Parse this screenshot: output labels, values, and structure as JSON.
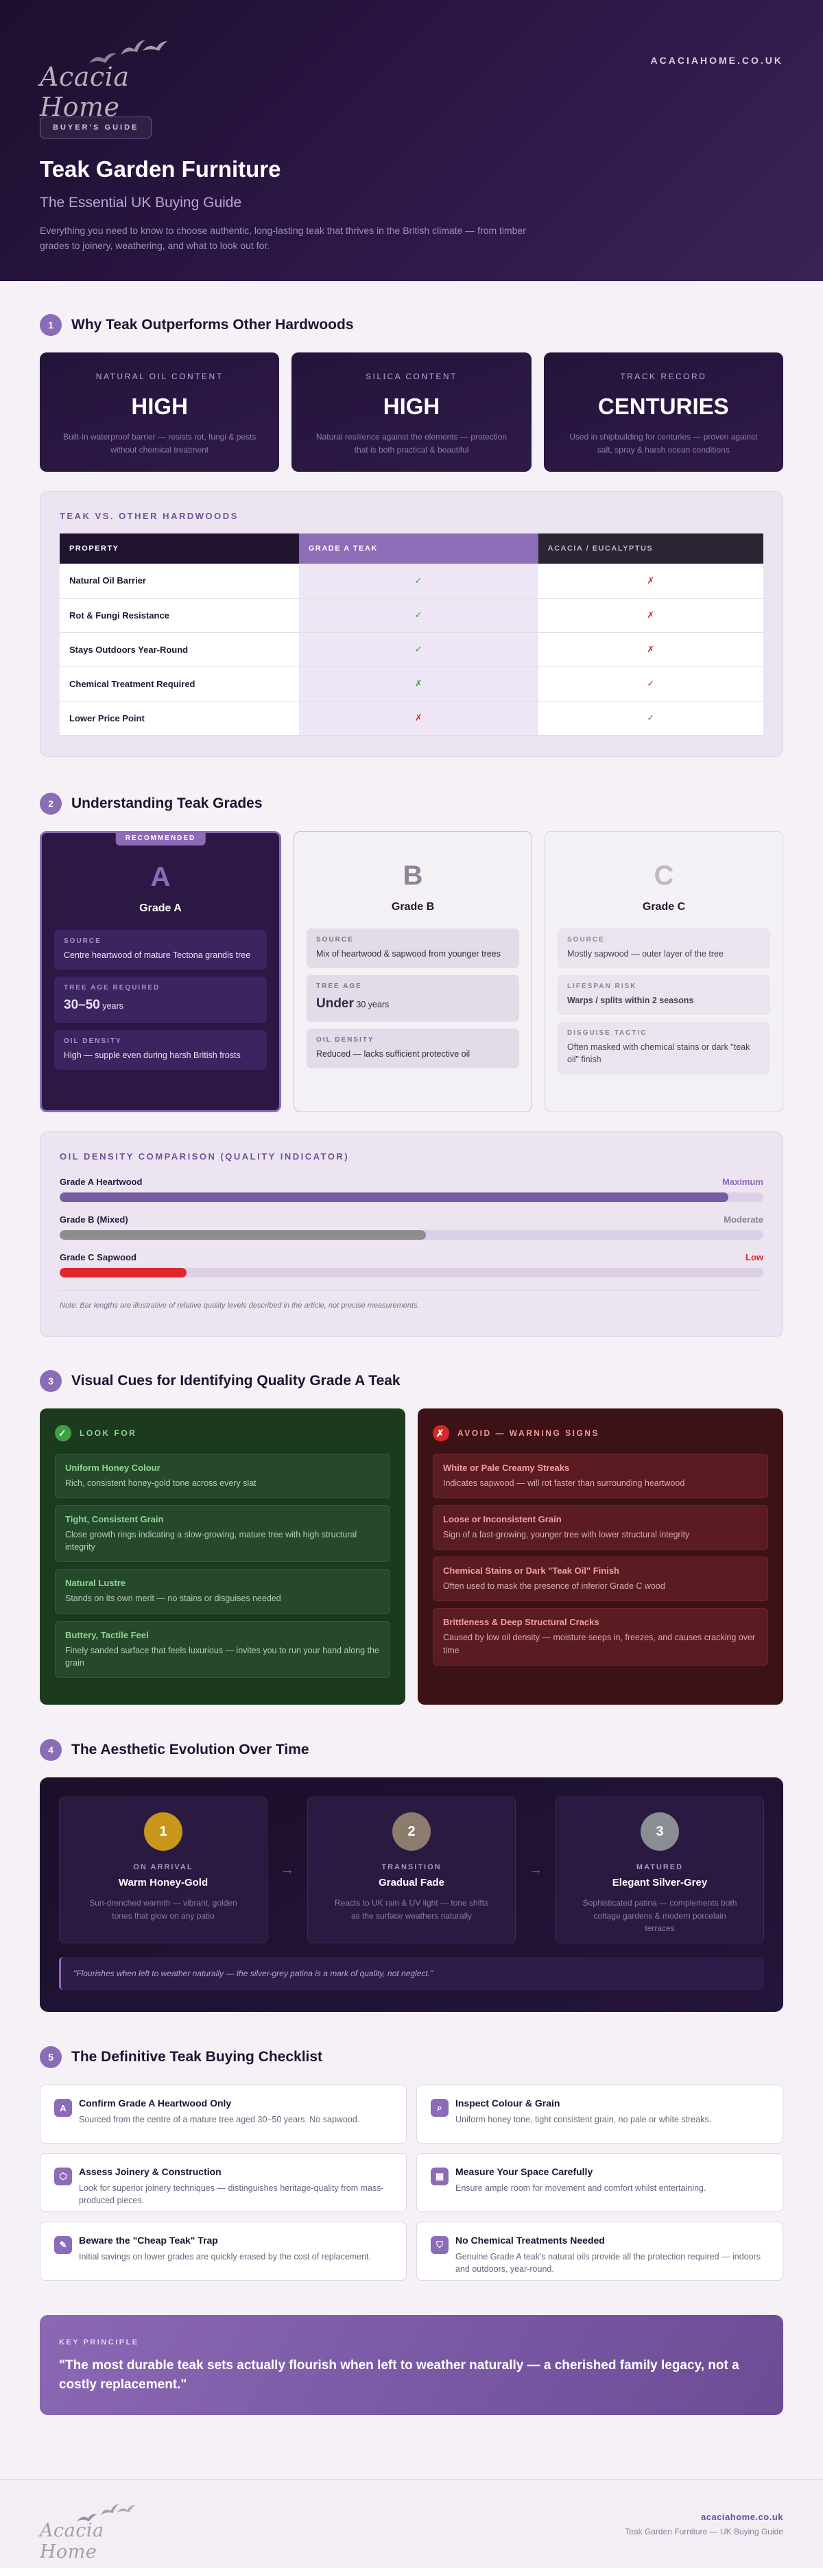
{
  "brand": {
    "logo": "Acacia Home",
    "url": "ACACIAHOME.CO.UK"
  },
  "hero": {
    "badge": "BUYER'S GUIDE",
    "title": "Teak Garden Furniture",
    "subtitle": "The Essential UK Buying Guide",
    "lede": "Everything you need to know to choose authentic, long-lasting teak that thrives in the British climate — from timber grades to joinery, weathering, and what to look out for."
  },
  "sec1": {
    "num": "1",
    "title": "Why Teak Outperforms Other Hardwoods",
    "stats": [
      {
        "label": "NATURAL OIL CONTENT",
        "value": "HIGH",
        "desc": "Built-in waterproof barrier — resists rot, fungi & pests without chemical treatment"
      },
      {
        "label": "SILICA CONTENT",
        "value": "HIGH",
        "desc": "Natural resilience against the elements — protection that is both practical & beautiful"
      },
      {
        "label": "TRACK RECORD",
        "value": "CENTURIES",
        "desc": "Used in shipbuilding for centuries — proven against salt, spray & harsh ocean conditions"
      }
    ],
    "compare": {
      "title": "TEAK VS. OTHER HARDWOODS",
      "headers": [
        "PROPERTY",
        "GRADE A TEAK",
        "ACACIA / EUCALYPTUS"
      ],
      "rows": [
        {
          "property": "Natural Oil Barrier",
          "teak": "✓",
          "teak_ok": true,
          "other": "✗",
          "other_ok": false
        },
        {
          "property": "Rot & Fungi Resistance",
          "teak": "✓",
          "teak_ok": true,
          "other": "✗",
          "other_ok": false
        },
        {
          "property": "Stays Outdoors Year-Round",
          "teak": "✓",
          "teak_ok": true,
          "other": "✗",
          "other_ok": false
        },
        {
          "property": "Chemical Treatment Required",
          "teak": "✗",
          "teak_ok": true,
          "other": "✓",
          "other_ok": false
        },
        {
          "property": "Lower Price Point",
          "teak": "✗",
          "teak_ok": false,
          "other": "✓",
          "other_ok": true
        }
      ]
    }
  },
  "sec2": {
    "num": "2",
    "title": "Understanding Teak Grades",
    "recommended": "RECOMMENDED",
    "grades": {
      "a": {
        "letter": "A",
        "name": "Grade A",
        "f1k": "SOURCE",
        "f1v": "Centre heartwood of mature Tectona grandis tree",
        "f2k": "TREE AGE REQUIRED",
        "f2big": "30–50",
        "f2unit": " years",
        "f3k": "OIL DENSITY",
        "f3v": "High — supple even during harsh British frosts"
      },
      "b": {
        "letter": "B",
        "name": "Grade B",
        "f1k": "SOURCE",
        "f1v": "Mix of heartwood & sapwood from younger trees",
        "f2k": "TREE AGE",
        "f2big": "Under",
        "f2unit": " 30 years",
        "f3k": "OIL DENSITY",
        "f3v": "Reduced — lacks sufficient protective oil"
      },
      "c": {
        "letter": "C",
        "name": "Grade C",
        "f1k": "SOURCE",
        "f1v": "Mostly sapwood — outer layer of the tree",
        "f2k": "LIFESPAN RISK",
        "f2v": "Warps / splits within 2 seasons",
        "f3k": "DISGUISE TACTIC",
        "f3v": "Often masked with chemical stains or dark \"teak oil\" finish"
      }
    },
    "density": {
      "title": "OIL DENSITY COMPARISON (QUALITY INDICATOR)",
      "bars": [
        {
          "name": "Grade A Heartwood",
          "level": "Maximum",
          "value": 0.95,
          "color": "#7a5ca6",
          "label_color": "#8c6bb7"
        },
        {
          "name": "Grade B (Mixed)",
          "level": "Moderate",
          "value": 0.52,
          "color": "#8d8d8d",
          "label_color": "#8a8291"
        },
        {
          "name": "Grade C Sapwood",
          "level": "Low",
          "value": 0.18,
          "color": "#e0262b",
          "label_color": "#d62828"
        }
      ],
      "note": "Note: Bar lengths are illustrative of relative quality levels described in the article, not precise measurements."
    }
  },
  "sec3": {
    "num": "3",
    "title": "Visual Cues for Identifying Quality Grade A Teak",
    "look": {
      "heading": "LOOK FOR",
      "items": [
        {
          "t": "Uniform Honey Colour",
          "d": "Rich, consistent honey-gold tone across every slat"
        },
        {
          "t": "Tight, Consistent Grain",
          "d": "Close growth rings indicating a slow-growing, mature tree with high structural integrity"
        },
        {
          "t": "Natural Lustre",
          "d": "Stands on its own merit — no stains or disguises needed"
        },
        {
          "t": "Buttery, Tactile Feel",
          "d": "Finely sanded surface that feels luxurious — invites you to run your hand along the grain"
        }
      ]
    },
    "avoid": {
      "heading": "AVOID — WARNING SIGNS",
      "items": [
        {
          "t": "White or Pale Creamy Streaks",
          "d": "Indicates sapwood — will rot faster than surrounding heartwood"
        },
        {
          "t": "Loose or Inconsistent Grain",
          "d": "Sign of a fast-growing, younger tree with lower structural integrity"
        },
        {
          "t": "Chemical Stains or Dark \"Teak Oil\" Finish",
          "d": "Often used to mask the presence of inferior Grade C wood"
        },
        {
          "t": "Brittleness & Deep Structural Cracks",
          "d": "Caused by low oil density — moisture seeps in, freezes, and causes cracking over time"
        }
      ]
    }
  },
  "sec4": {
    "num": "4",
    "title": "The Aesthetic Evolution Over Time",
    "stages": [
      {
        "n": "1",
        "label": "ON ARRIVAL",
        "title": "Warm Honey-Gold",
        "desc": "Sun-drenched warmth — vibrant, golden tones that glow on any patio",
        "color": "#c9961c"
      },
      {
        "n": "2",
        "label": "TRANSITION",
        "title": "Gradual Fade",
        "desc": "Reacts to UK rain & UV light — tone shifts as the surface weathers naturally",
        "color": "#8c7c6e"
      },
      {
        "n": "3",
        "label": "MATURED",
        "title": "Elegant Silver-Grey",
        "desc": "Sophisticated patina — complements both cottage gardens & modern porcelain terraces",
        "color": "#8b8d94"
      }
    ],
    "quote": "\"Flourishes when left to weather naturally — the silver-grey patina is a mark of quality, not neglect.\""
  },
  "sec5": {
    "num": "5",
    "title": "The Definitive Teak Buying Checklist",
    "items": [
      {
        "icon": "A",
        "icon_name": "grade-a-icon",
        "t": "Confirm Grade A Heartwood Only",
        "d": "Sourced from the centre of a mature tree aged 30–50 years. No sapwood."
      },
      {
        "icon": "⌕",
        "icon_name": "magnifier-icon",
        "t": "Inspect Colour & Grain",
        "d": "Uniform honey tone, tight consistent grain, no pale or white streaks."
      },
      {
        "icon": "⬡",
        "icon_name": "joinery-icon",
        "t": "Assess Joinery & Construction",
        "d": "Look for superior joinery techniques — distinguishes heritage-quality from mass-produced pieces."
      },
      {
        "icon": "▦",
        "icon_name": "ruler-grid-icon",
        "t": "Measure Your Space Carefully",
        "d": "Ensure ample room for movement and comfort whilst entertaining."
      },
      {
        "icon": "✎",
        "icon_name": "tag-icon",
        "t": "Beware the \"Cheap Teak\" Trap",
        "d": "Initial savings on lower grades are quickly erased by the cost of replacement."
      },
      {
        "icon": "⛉",
        "icon_name": "shield-icon",
        "t": "No Chemical Treatments Needed",
        "d": "Genuine Grade A teak's natural oils provide all the protection required — indoors and outdoors, year-round."
      }
    ]
  },
  "key": {
    "label": "KEY PRINCIPLE",
    "quote": "\"The most durable teak sets actually flourish when left to weather naturally — a cherished family legacy, not a costly replacement.\""
  },
  "footer": {
    "url": "acaciahome.co.uk",
    "tagline": "Teak Garden Furniture — UK Buying Guide"
  }
}
